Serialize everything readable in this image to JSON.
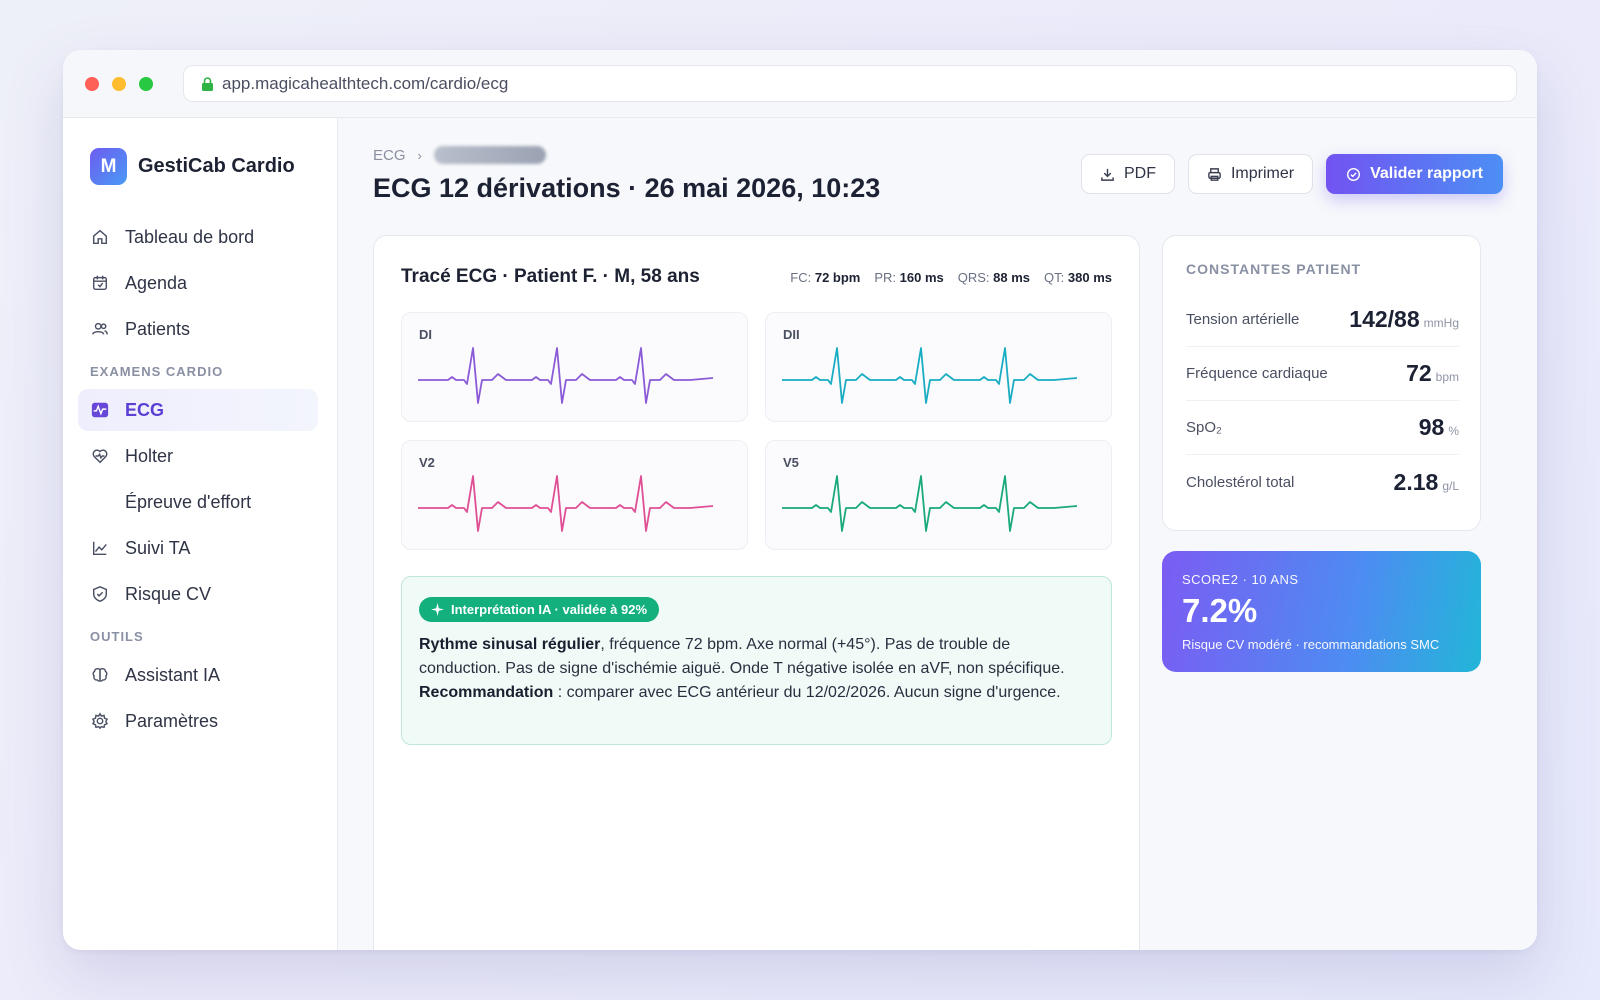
{
  "browser": {
    "url": "app.magicahealthtech.com/cardio/ecg"
  },
  "brand": {
    "logo_letter": "M",
    "name": "GestiCab Cardio"
  },
  "sidebar": {
    "items_top": [
      {
        "label": "Tableau de bord",
        "icon": "home-icon"
      },
      {
        "label": "Agenda",
        "icon": "calendar-icon"
      },
      {
        "label": "Patients",
        "icon": "users-icon"
      }
    ],
    "section_exams": "EXAMENS CARDIO",
    "items_exams": [
      {
        "label": "ECG",
        "icon": "ecg-icon",
        "active": true
      },
      {
        "label": "Holter",
        "icon": "heart-pulse-icon"
      },
      {
        "label": "Épreuve d'effort",
        "icon": ""
      },
      {
        "label": "Suivi TA",
        "icon": "line-chart-icon"
      },
      {
        "label": "Risque CV",
        "icon": "shield-check-icon"
      }
    ],
    "section_tools": "OUTILS",
    "items_tools": [
      {
        "label": "Assistant IA",
        "icon": "brain-icon"
      },
      {
        "label": "Paramètres",
        "icon": "gear-icon"
      }
    ]
  },
  "header": {
    "breadcrumb_root": "ECG",
    "title": "ECG 12 dérivations · 26 mai 2026, 10:23",
    "btn_pdf": "PDF",
    "btn_print": "Imprimer",
    "btn_validate": "Valider rapport"
  },
  "ecg": {
    "title": "Tracé ECG · Patient F. · M, 58 ans",
    "metrics": [
      {
        "label": "FC:",
        "value": "72 bpm"
      },
      {
        "label": "PR:",
        "value": "160 ms"
      },
      {
        "label": "QRS:",
        "value": "88 ms"
      },
      {
        "label": "QT:",
        "value": "380 ms"
      }
    ],
    "leads": [
      {
        "label": "DI",
        "color": "#8b5ad6"
      },
      {
        "label": "DII",
        "color": "#19adc2"
      },
      {
        "label": "V2",
        "color": "#df4f95"
      },
      {
        "label": "V5",
        "color": "#19a97a"
      }
    ]
  },
  "ai": {
    "badge": "Interprétation IA · validée à 92%",
    "bold1": "Rythme sinusal régulier",
    "text1": ", fréquence 72 bpm. Axe normal (+45°). Pas de trouble de conduction. Pas de signe d'ischémie aiguë. Onde T négative isolée en aVF, non spécifique. ",
    "bold2": "Recommandation",
    "text2": " : comparer avec ECG antérieur du 12/02/2026. Aucun signe d'urgence."
  },
  "vitals": {
    "title": "CONSTANTES PATIENT",
    "rows": [
      {
        "label": "Tension artérielle",
        "value": "142/88",
        "unit": "mmHg"
      },
      {
        "label": "Fréquence cardiaque",
        "value": "72",
        "unit": "bpm"
      },
      {
        "label": "SpO₂",
        "value": "98",
        "unit": "%"
      },
      {
        "label": "Cholestérol total",
        "value": "2.18",
        "unit": "g/L"
      }
    ]
  },
  "score": {
    "label": "SCORE2 · 10 ANS",
    "value": "7.2%",
    "subtitle": "Risque CV modéré · recommandations SMC"
  },
  "colors": {
    "accent": "#6c4ef0",
    "ai_green": "#13b07e"
  }
}
